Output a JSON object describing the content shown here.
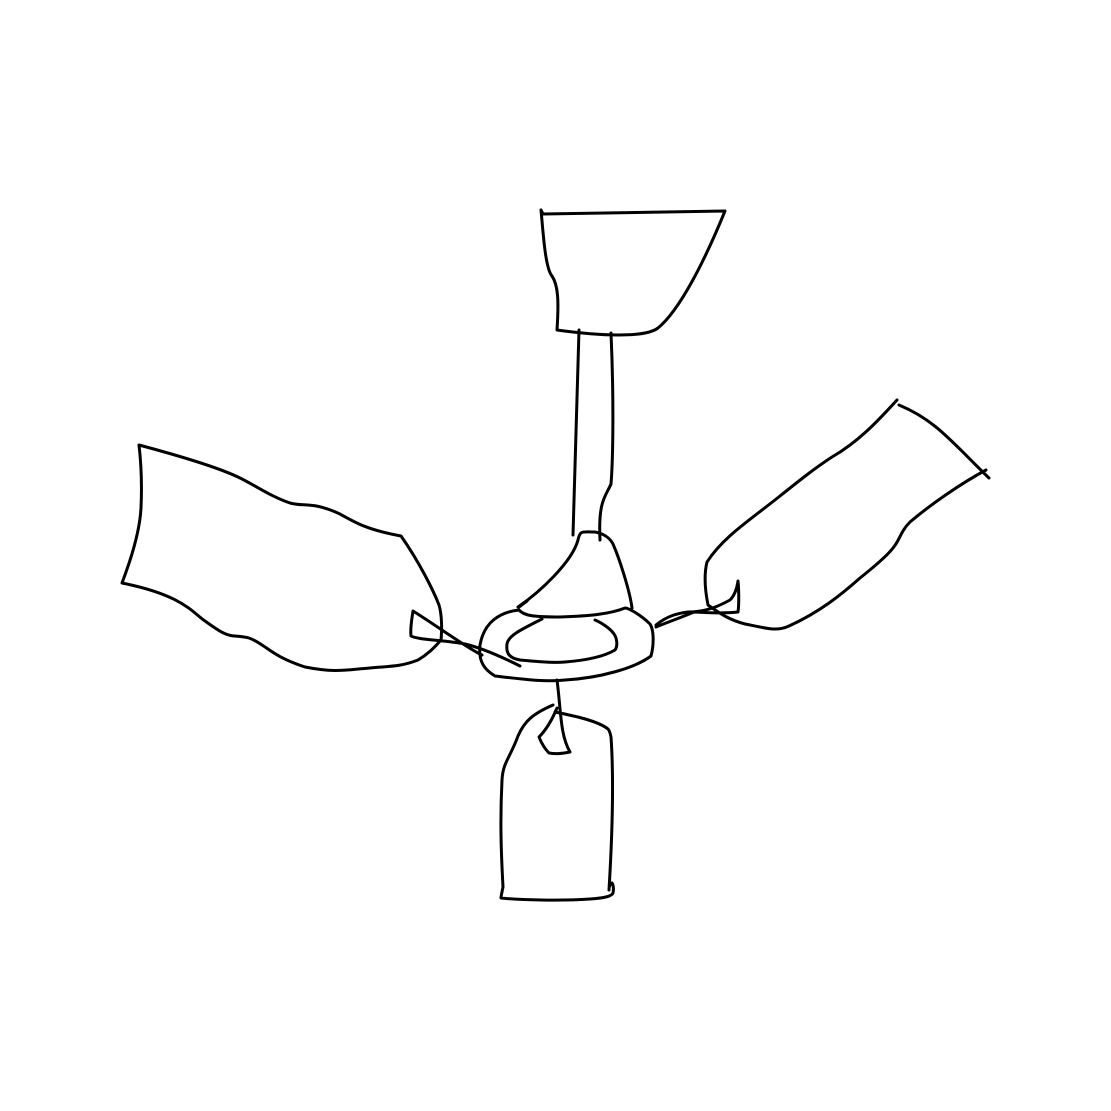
{
  "drawing": {
    "subject_icon": "ceiling-fan-icon",
    "stroke_color": "#000000",
    "background_color": "#ffffff"
  }
}
